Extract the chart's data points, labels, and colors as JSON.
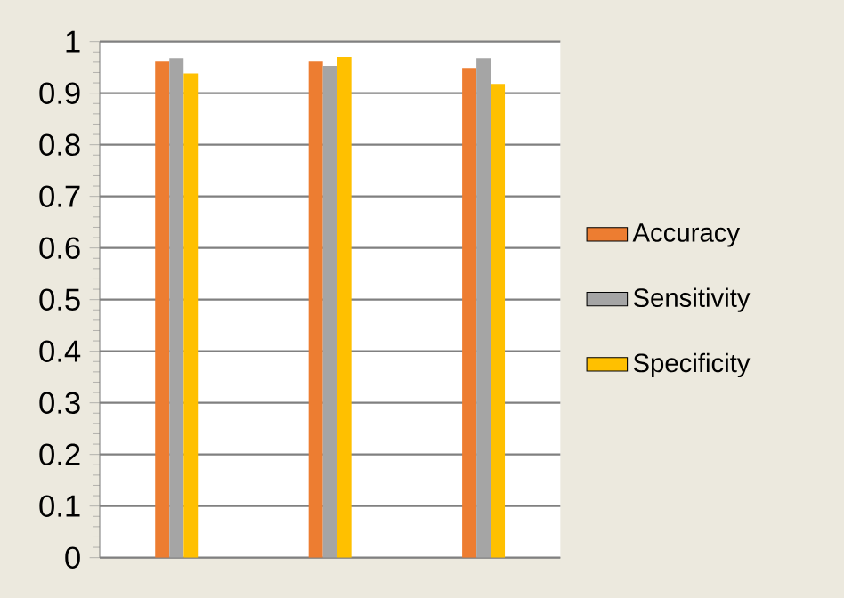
{
  "chart_data": {
    "type": "bar",
    "categories": [
      null,
      null,
      null
    ],
    "series": [
      {
        "name": "Accuracy",
        "color": "#ed7d31",
        "values": [
          0.961,
          0.961,
          0.949
        ]
      },
      {
        "name": "Sensitivity",
        "color": "#a5a5a5",
        "values": [
          0.968,
          0.953,
          0.968
        ]
      },
      {
        "name": "Specificity",
        "color": "#ffc000",
        "values": [
          0.938,
          0.97,
          0.918
        ]
      }
    ],
    "ylim": [
      0,
      1
    ],
    "yticks": [
      0,
      0.1,
      0.2,
      0.3,
      0.4,
      0.5,
      0.6,
      0.7,
      0.8,
      0.9,
      1
    ],
    "grid": "y",
    "legend": "right"
  }
}
